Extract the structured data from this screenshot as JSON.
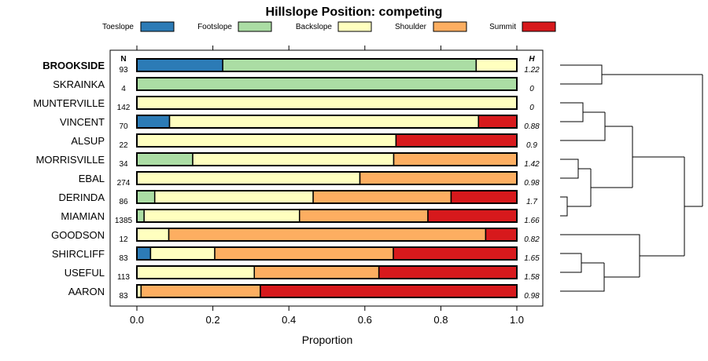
{
  "chart_data": {
    "type": "bar",
    "orientation": "horizontal-stacked",
    "title": "Hillslope Position: competing",
    "xlabel": "Proportion",
    "xlim": [
      0,
      1
    ],
    "xticks": [
      "0.0",
      "0.2",
      "0.4",
      "0.6",
      "0.8",
      "1.0"
    ],
    "n_header": "N",
    "h_header": "H",
    "legend_position": "top",
    "series": [
      {
        "name": "Toeslope",
        "color": "#2c7bb6"
      },
      {
        "name": "Footslope",
        "color": "#abdda4"
      },
      {
        "name": "Backslope",
        "color": "#ffffbf"
      },
      {
        "name": "Shoulder",
        "color": "#fdae61"
      },
      {
        "name": "Summit",
        "color": "#d7191c"
      }
    ],
    "categories": [
      {
        "name": "BROOKSIDE",
        "bold": true,
        "n": "93",
        "h": "1.22",
        "values": [
          0.226,
          0.667,
          0.107,
          0,
          0
        ]
      },
      {
        "name": "SKRAINKA",
        "n": "4",
        "h": "0",
        "values": [
          0,
          1,
          0,
          0,
          0
        ]
      },
      {
        "name": "MUNTERVILLE",
        "n": "142",
        "h": "0",
        "values": [
          0,
          0,
          1,
          0,
          0
        ]
      },
      {
        "name": "VINCENT",
        "n": "70",
        "h": "0.88",
        "values": [
          0.086,
          0,
          0.813,
          0,
          0.101
        ]
      },
      {
        "name": "ALSUP",
        "n": "22",
        "h": "0.9",
        "values": [
          0,
          0,
          0.682,
          0,
          0.318
        ]
      },
      {
        "name": "MORRISVILLE",
        "n": "34",
        "h": "1.42",
        "values": [
          0,
          0.147,
          0.529,
          0.324,
          0
        ]
      },
      {
        "name": "EBAL",
        "n": "274",
        "h": "0.98",
        "values": [
          0,
          0,
          0.587,
          0.413,
          0
        ]
      },
      {
        "name": "DERINDA",
        "n": "86",
        "h": "1.7",
        "values": [
          0,
          0.047,
          0.417,
          0.363,
          0.173
        ]
      },
      {
        "name": "MIAMIAN",
        "n": "1385",
        "h": "1.66",
        "values": [
          0,
          0.019,
          0.409,
          0.338,
          0.234
        ]
      },
      {
        "name": "GOODSON",
        "n": "12",
        "h": "0.82",
        "values": [
          0,
          0,
          0.084,
          0.834,
          0.082
        ]
      },
      {
        "name": "SHIRCLIFF",
        "n": "83",
        "h": "1.65",
        "values": [
          0.036,
          0,
          0.169,
          0.47,
          0.325
        ]
      },
      {
        "name": "USEFUL",
        "n": "113",
        "h": "1.58",
        "values": [
          0,
          0,
          0.309,
          0.328,
          0.363
        ]
      },
      {
        "name": "AARON",
        "n": "83",
        "h": "0.98",
        "values": [
          0,
          0,
          0.011,
          0.314,
          0.675
        ]
      }
    ]
  }
}
